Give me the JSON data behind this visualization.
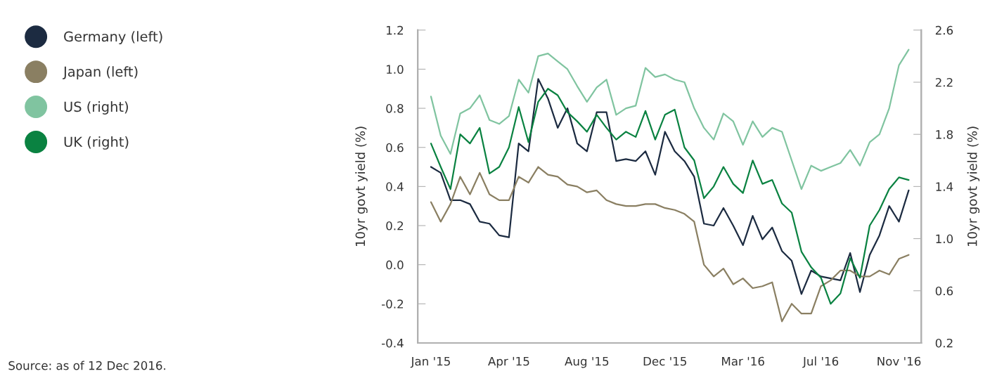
{
  "chart_data": {
    "type": "line",
    "ylabel": "10yr govt yield (%)",
    "y2label": "10yr govt yield (%)",
    "annotations": [
      "Source: as of 12 Dec 2016."
    ],
    "x": [
      "2015-01-05",
      "2015-01-19",
      "2015-02-02",
      "2015-02-16",
      "2015-03-02",
      "2015-03-16",
      "2015-03-30",
      "2015-04-13",
      "2015-04-27",
      "2015-05-11",
      "2015-05-25",
      "2015-06-08",
      "2015-06-22",
      "2015-07-06",
      "2015-07-20",
      "2015-08-03",
      "2015-08-17",
      "2015-08-31",
      "2015-09-14",
      "2015-09-28",
      "2015-10-12",
      "2015-10-26",
      "2015-11-09",
      "2015-11-23",
      "2015-12-07",
      "2015-12-21",
      "2016-01-04",
      "2016-01-18",
      "2016-02-01",
      "2016-02-15",
      "2016-02-29",
      "2016-03-14",
      "2016-03-28",
      "2016-04-11",
      "2016-04-25",
      "2016-05-09",
      "2016-05-23",
      "2016-06-06",
      "2016-06-20",
      "2016-07-04",
      "2016-07-18",
      "2016-08-01",
      "2016-08-15",
      "2016-08-29",
      "2016-09-12",
      "2016-09-26",
      "2016-10-10",
      "2016-10-24",
      "2016-11-07",
      "2016-11-21"
    ],
    "series": [
      {
        "name": "Germany (left)",
        "color": "#1c2b41",
        "values": [
          0.5,
          0.47,
          0.33,
          0.33,
          0.31,
          0.22,
          0.21,
          0.15,
          0.14,
          0.62,
          0.58,
          0.95,
          0.85,
          0.7,
          0.8,
          0.62,
          0.58,
          0.78,
          0.78,
          0.53,
          0.54,
          0.53,
          0.58,
          0.46,
          0.68,
          0.58,
          0.53,
          0.45,
          0.21,
          0.2,
          0.29,
          0.2,
          0.1,
          0.25,
          0.13,
          0.19,
          0.07,
          0.02,
          -0.15,
          -0.03,
          -0.06,
          -0.07,
          -0.08,
          0.06,
          -0.14,
          0.05,
          0.15,
          0.3,
          0.22,
          0.38
        ]
      },
      {
        "name": "Japan (left)",
        "color": "#8a7f62",
        "values": [
          0.32,
          0.22,
          0.31,
          0.45,
          0.36,
          0.47,
          0.36,
          0.33,
          0.33,
          0.45,
          0.42,
          0.5,
          0.46,
          0.45,
          0.41,
          0.4,
          0.37,
          0.38,
          0.33,
          0.31,
          0.3,
          0.3,
          0.31,
          0.31,
          0.29,
          0.28,
          0.26,
          0.22,
          0.0,
          -0.06,
          -0.02,
          -0.1,
          -0.07,
          -0.12,
          -0.11,
          -0.09,
          -0.29,
          -0.2,
          -0.25,
          -0.25,
          -0.11,
          -0.08,
          -0.03,
          -0.03,
          -0.06,
          -0.06,
          -0.03,
          -0.05,
          0.03,
          0.05
        ]
      },
      {
        "name": "US (right)",
        "color": "#80c4a0",
        "axis": "y2",
        "values": [
          2.09,
          1.79,
          1.65,
          1.96,
          2.0,
          2.1,
          1.91,
          1.88,
          1.94,
          2.22,
          2.12,
          2.4,
          2.42,
          2.36,
          2.3,
          2.17,
          2.05,
          2.16,
          2.22,
          1.95,
          2.0,
          2.02,
          2.31,
          2.24,
          2.26,
          2.22,
          2.2,
          2.0,
          1.85,
          1.76,
          1.96,
          1.9,
          1.72,
          1.9,
          1.78,
          1.85,
          1.82,
          1.6,
          1.38,
          1.56,
          1.52,
          1.55,
          1.58,
          1.68,
          1.56,
          1.74,
          1.8,
          2.0,
          2.33,
          2.45
        ]
      },
      {
        "name": "UK (right)",
        "color": "#0a8241",
        "axis": "y2",
        "values": [
          1.73,
          1.55,
          1.38,
          1.8,
          1.73,
          1.85,
          1.5,
          1.55,
          1.7,
          2.01,
          1.74,
          2.05,
          2.15,
          2.1,
          1.97,
          1.9,
          1.82,
          1.95,
          1.85,
          1.76,
          1.82,
          1.78,
          1.98,
          1.76,
          1.95,
          1.99,
          1.7,
          1.6,
          1.31,
          1.4,
          1.55,
          1.42,
          1.35,
          1.6,
          1.42,
          1.45,
          1.27,
          1.2,
          0.9,
          0.78,
          0.7,
          0.5,
          0.58,
          0.85,
          0.7,
          1.1,
          1.22,
          1.38,
          1.47,
          1.45
        ]
      }
    ],
    "xlim": [
      "2014-12-17",
      "2016-12-09"
    ],
    "xticks": [
      {
        "value": "2015-01-05",
        "label": "Jan '15"
      },
      {
        "value": "2015-04-27",
        "label": "Apr '15"
      },
      {
        "value": "2015-08-17",
        "label": "Aug '15"
      },
      {
        "value": "2015-12-07",
        "label": "Dec '15"
      },
      {
        "value": "2016-03-28",
        "label": "Mar '16"
      },
      {
        "value": "2016-07-18",
        "label": "Jul '16"
      },
      {
        "value": "2016-11-07",
        "label": "Nov '16"
      }
    ],
    "ylim": [
      -0.4,
      1.2
    ],
    "yticks": [
      -0.4,
      -0.2,
      {
        "value": 0,
        "label": "0.0"
      },
      0.2,
      0.4,
      0.6,
      0.8,
      {
        "value": 1,
        "label": "1.0"
      },
      1.2
    ],
    "y2lim": [
      0.2,
      2.6
    ],
    "y2ticks": [
      0.2,
      0.6,
      {
        "value": 1,
        "label": "1.0"
      },
      1.4,
      1.8,
      2.2,
      2.6
    ],
    "grid": false,
    "legend": "left",
    "marker": "none",
    "line_style": "solid"
  }
}
